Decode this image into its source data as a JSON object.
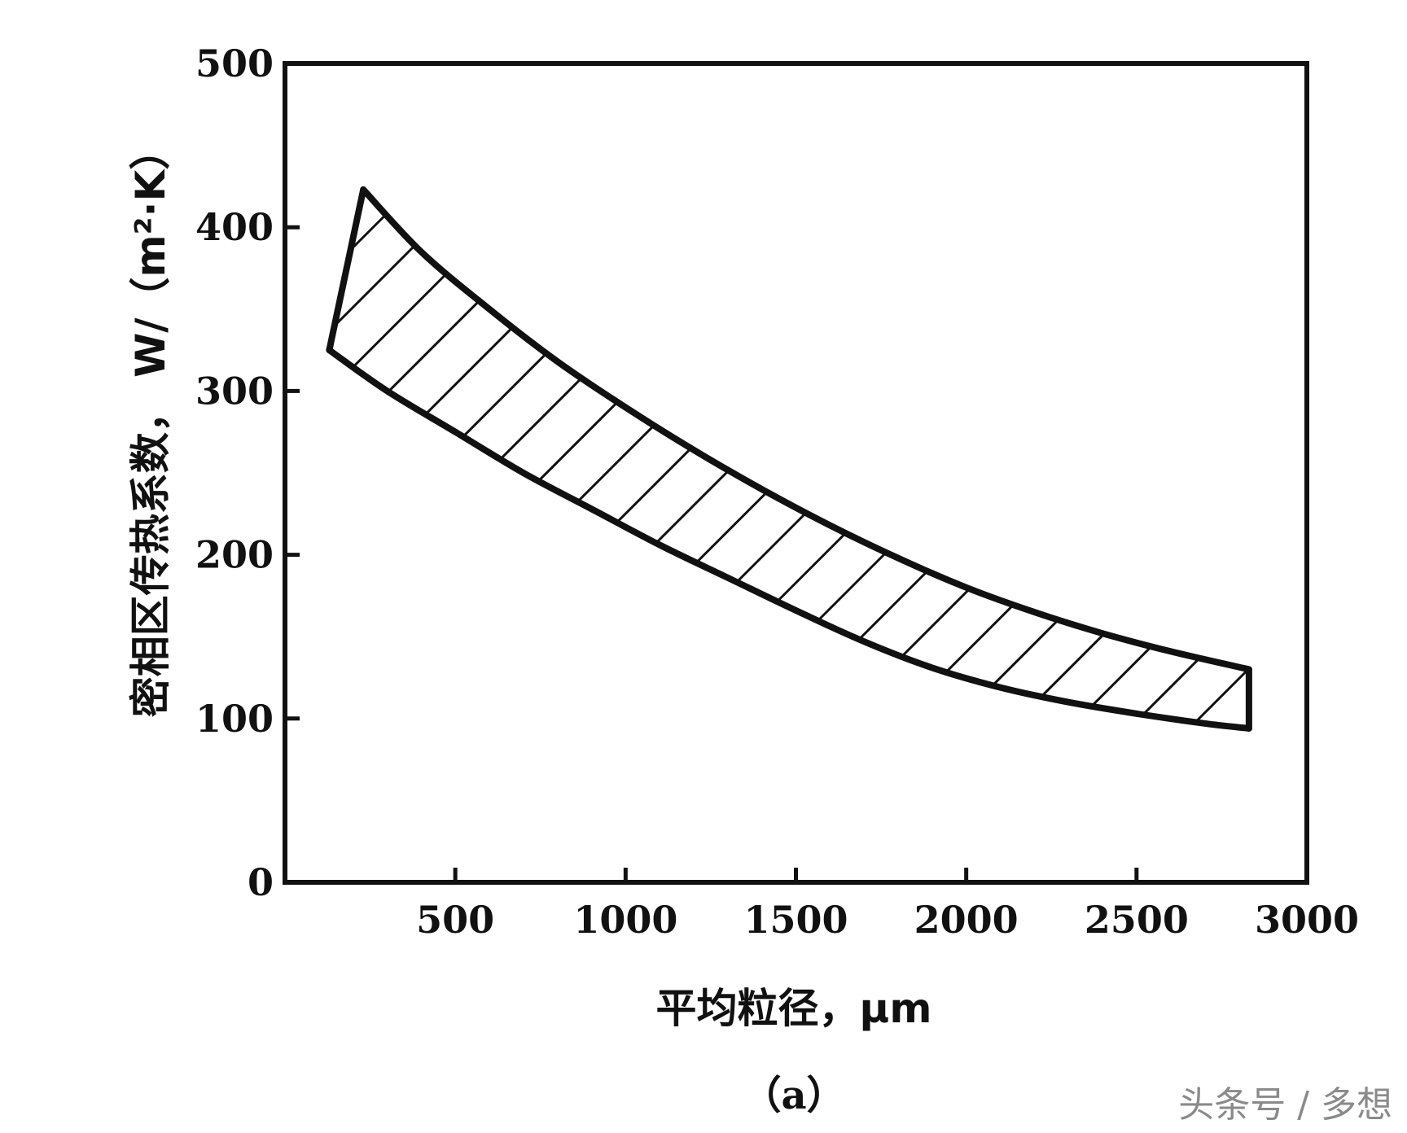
{
  "chart_data": {
    "type": "area",
    "xlabel": "平均粒径，μm",
    "ylabel": "密相区传热系数， W/（m²·K）",
    "xlim": [
      0,
      3000
    ],
    "ylim": [
      0,
      500
    ],
    "xticks": [
      500,
      1000,
      1500,
      2000,
      2500,
      3000
    ],
    "yticks": [
      0,
      100,
      200,
      300,
      400,
      500
    ],
    "grid": false,
    "fill": "hatched",
    "series": [
      {
        "role": "upper",
        "x": [
          230,
          400,
          600,
          800,
          1000,
          1200,
          1400,
          1600,
          1800,
          2000,
          2200,
          2400,
          2600,
          2830
        ],
        "values": [
          423,
          385,
          350,
          318,
          290,
          264,
          240,
          218,
          198,
          180,
          165,
          152,
          141,
          130
        ]
      },
      {
        "role": "lower",
        "x": [
          130,
          300,
          500,
          700,
          900,
          1100,
          1300,
          1500,
          1700,
          1900,
          2100,
          2300,
          2500,
          2700,
          2830
        ],
        "values": [
          325,
          300,
          275,
          250,
          228,
          206,
          186,
          166,
          147,
          131,
          119,
          110,
          103,
          97,
          94
        ]
      }
    ]
  },
  "figure": {
    "caption": "（a）",
    "watermark": "头条号 / 多想"
  }
}
